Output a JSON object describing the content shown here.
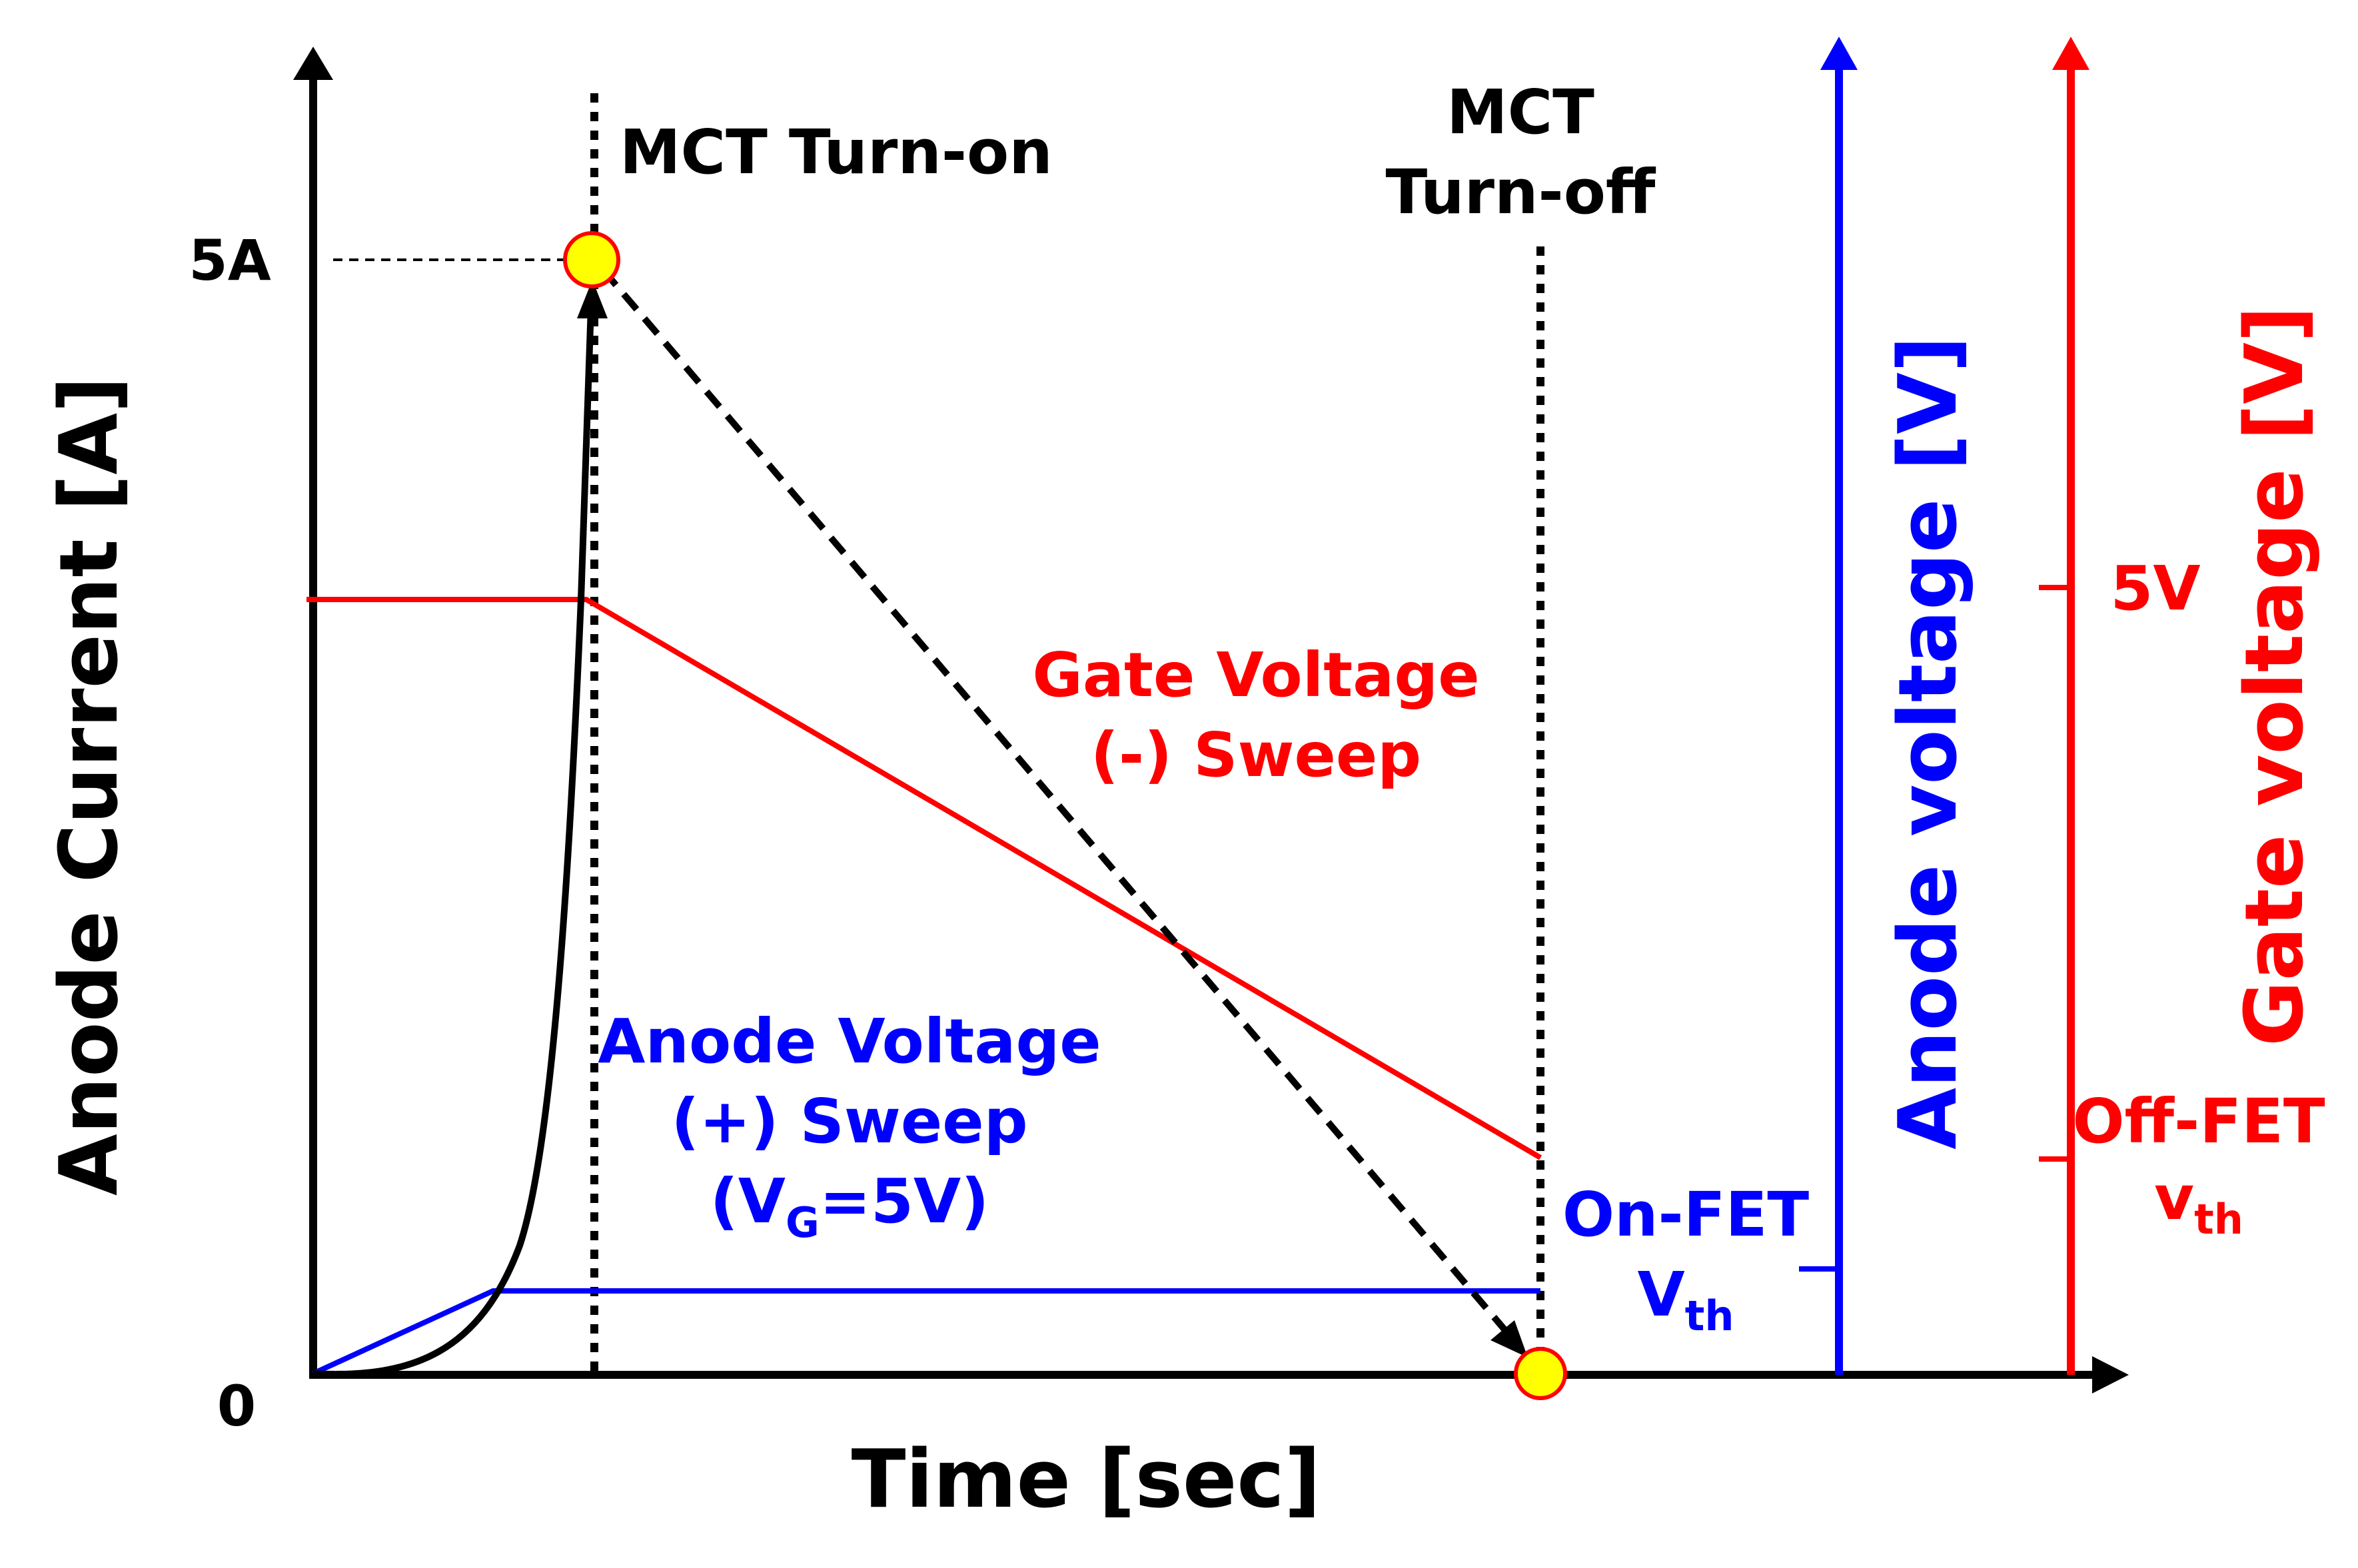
{
  "colors": {
    "axis": "#000000",
    "gate": "#ff0000",
    "anode": "#0000ff",
    "marker_fill": "#ffff00",
    "marker_stroke": "#ff0000"
  },
  "axes": {
    "x_title": "Time [sec]",
    "y_left_title": "Anode Current [A]",
    "y_anode_title": "Anode voltage [V]",
    "y_gate_title": "Gate voltage [V]",
    "y_tick_max": "5A",
    "y_tick_zero": "0"
  },
  "events": {
    "turn_on": "MCT Turn-on",
    "turn_off_line1": "MCT",
    "turn_off_line2": "Turn-off"
  },
  "gate_sweep": {
    "line1": "Gate Voltage",
    "line2": "(-) Sweep"
  },
  "anode_sweep": {
    "line1": "Anode Voltage",
    "line2": "(+) Sweep",
    "line3_prefix": "(V",
    "line3_sub": "G",
    "line3_suffix": "=5V)"
  },
  "on_fet": {
    "line1": "On-FET",
    "v": "V",
    "sub": "th"
  },
  "gate_ticks": {
    "tick_5v": "5V",
    "off_fet": "Off-FET",
    "v": "v",
    "sub": "th"
  }
}
